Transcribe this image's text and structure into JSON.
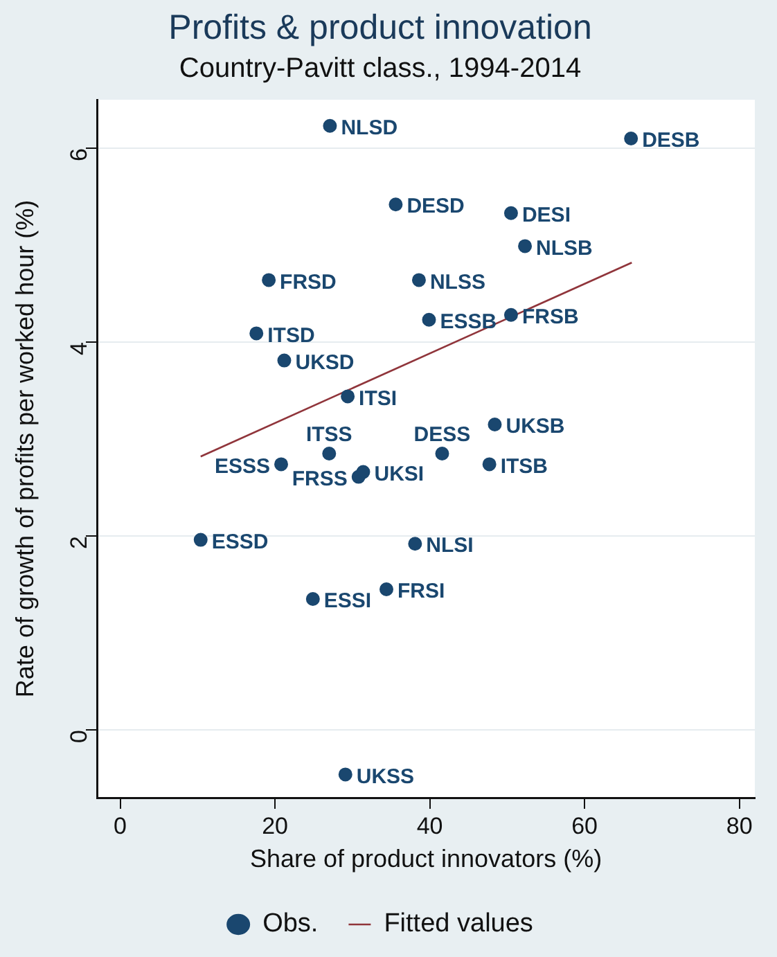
{
  "chart_data": {
    "type": "scatter",
    "title": "Profits & product innovation",
    "subtitle": "Country-Pavitt class., 1994-2014",
    "xlabel": "Share of product innovators (%)",
    "ylabel": "Rate of growth of profits per worked hour (%)",
    "xlim": [
      -3,
      82
    ],
    "ylim": [
      -0.7,
      6.5
    ],
    "xticks": [
      0,
      20,
      40,
      60,
      80
    ],
    "yticks": [
      0,
      2,
      4,
      6
    ],
    "grid": "y",
    "legend": "bottom",
    "series": [
      {
        "name": "Obs.",
        "type": "scatter",
        "marker": "circle",
        "color": "#1a476f",
        "x": [
          27.1,
          66.0,
          35.6,
          50.5,
          52.3,
          19.2,
          38.6,
          39.9,
          50.5,
          17.6,
          21.2,
          29.4,
          48.4,
          20.8,
          27.0,
          30.8,
          31.4,
          41.6,
          47.7,
          10.4,
          38.1,
          34.4,
          24.9,
          29.1
        ],
        "values": [
          6.23,
          6.1,
          5.42,
          5.33,
          4.99,
          4.64,
          4.64,
          4.23,
          4.28,
          4.09,
          3.81,
          3.44,
          3.15,
          2.74,
          2.85,
          2.61,
          2.66,
          2.85,
          2.74,
          1.96,
          1.92,
          1.45,
          1.35,
          -0.46
        ]
      },
      {
        "name": "Fitted values",
        "type": "line",
        "marker": "none",
        "color": "#90353b",
        "x": [
          10.4,
          66.1
        ],
        "values": [
          2.82,
          4.82
        ]
      }
    ],
    "annotations": [
      {
        "text": "NLSD",
        "x": 27.1,
        "y": 6.23
      },
      {
        "text": "DESB",
        "x": 66.0,
        "y": 6.1
      },
      {
        "text": "DESD",
        "x": 35.6,
        "y": 5.42
      },
      {
        "text": "DESI",
        "x": 50.5,
        "y": 5.33
      },
      {
        "text": "NLSB",
        "x": 52.3,
        "y": 4.99
      },
      {
        "text": "FRSD",
        "x": 19.2,
        "y": 4.64
      },
      {
        "text": "NLSS",
        "x": 38.6,
        "y": 4.64
      },
      {
        "text": "ESSB",
        "x": 39.9,
        "y": 4.23
      },
      {
        "text": "FRSB",
        "x": 50.5,
        "y": 4.28
      },
      {
        "text": "ITSD",
        "x": 17.6,
        "y": 4.09
      },
      {
        "text": "UKSD",
        "x": 21.2,
        "y": 3.81
      },
      {
        "text": "ITSI",
        "x": 29.4,
        "y": 3.44
      },
      {
        "text": "UKSB",
        "x": 48.4,
        "y": 3.15
      },
      {
        "text": "ESSS",
        "x": 20.8,
        "y": 2.74
      },
      {
        "text": "ITSS",
        "x": 27.0,
        "y": 2.85
      },
      {
        "text": "FRSS",
        "x": 30.8,
        "y": 2.61
      },
      {
        "text": "UKSI",
        "x": 31.4,
        "y": 2.66
      },
      {
        "text": "DESS",
        "x": 41.6,
        "y": 2.85
      },
      {
        "text": "ITSB",
        "x": 47.7,
        "y": 2.74
      },
      {
        "text": "ESSD",
        "x": 10.4,
        "y": 1.96
      },
      {
        "text": "NLSI",
        "x": 38.1,
        "y": 1.92
      },
      {
        "text": "FRSI",
        "x": 34.4,
        "y": 1.45
      },
      {
        "text": "ESSI",
        "x": 24.9,
        "y": 1.35
      },
      {
        "text": "UKSS",
        "x": 29.1,
        "y": -0.46
      }
    ]
  }
}
